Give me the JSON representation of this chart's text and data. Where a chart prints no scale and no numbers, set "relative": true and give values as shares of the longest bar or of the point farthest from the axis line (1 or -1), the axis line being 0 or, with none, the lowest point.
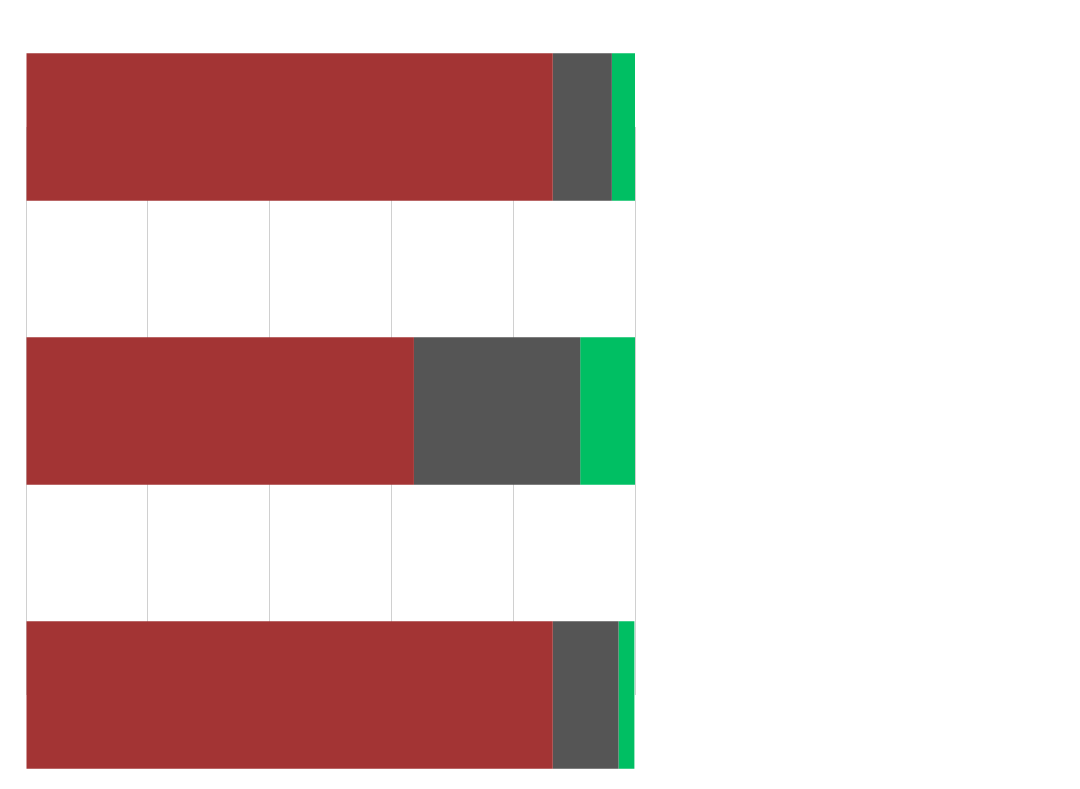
{
  "chart_data": {
    "type": "bar",
    "orientation": "horizontal",
    "stacked": true,
    "relative": true,
    "grid": "x",
    "legend": false,
    "tick_labels": false,
    "categories": [
      null,
      null,
      null
    ],
    "series": [
      {
        "color": "#a33434",
        "values": [
          0.865,
          0.637,
          0.865
        ]
      },
      {
        "color": "#555555",
        "values": [
          0.097,
          0.273,
          0.108
        ]
      },
      {
        "color": "#00bf63",
        "values": [
          0.038,
          0.09,
          0.026
        ]
      }
    ]
  }
}
